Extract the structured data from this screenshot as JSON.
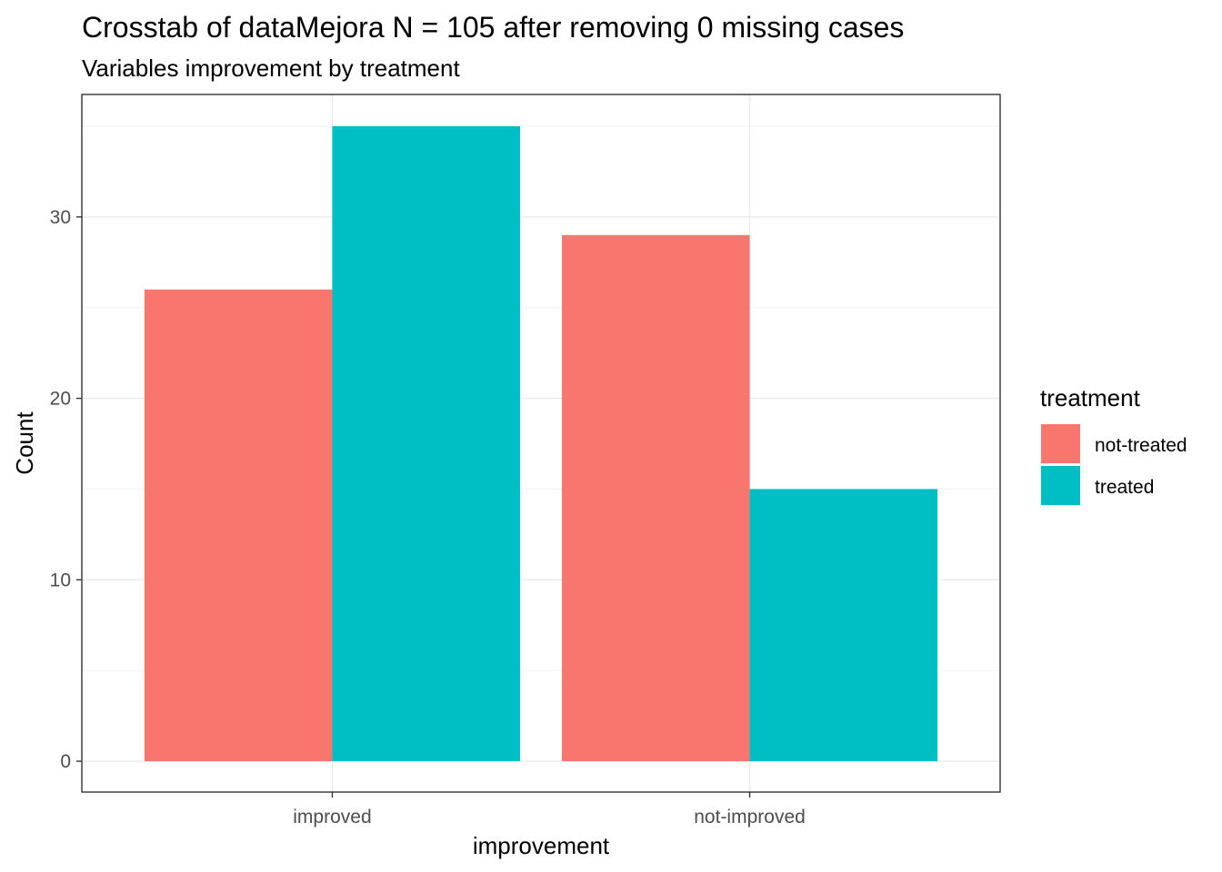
{
  "chart_data": {
    "type": "bar",
    "title": "Crosstab of dataMejora N = 105 after removing 0 missing cases",
    "subtitle": "Variables improvement by treatment",
    "xlabel": "improvement",
    "ylabel": "Count",
    "categories": [
      "improved",
      "not-improved"
    ],
    "series": [
      {
        "name": "not-treated",
        "values": [
          26,
          29
        ],
        "color": "#F8766D"
      },
      {
        "name": "treated",
        "values": [
          35,
          15
        ],
        "color": "#00BFC4"
      }
    ],
    "ylim": [
      -1.7,
      36.75
    ],
    "yticks": [
      0,
      10,
      20,
      30
    ],
    "ytick_labels": [
      "0",
      "10",
      "20",
      "30"
    ],
    "grid": true,
    "legend": {
      "title": "treatment",
      "position": "right"
    }
  }
}
